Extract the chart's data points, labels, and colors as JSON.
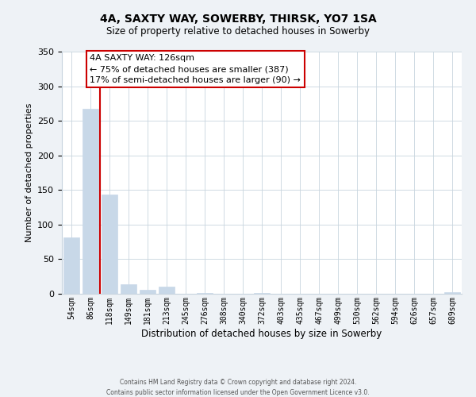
{
  "title": "4A, SAXTY WAY, SOWERBY, THIRSK, YO7 1SA",
  "subtitle": "Size of property relative to detached houses in Sowerby",
  "xlabel": "Distribution of detached houses by size in Sowerby",
  "ylabel": "Number of detached properties",
  "bar_labels": [
    "54sqm",
    "86sqm",
    "118sqm",
    "149sqm",
    "181sqm",
    "213sqm",
    "245sqm",
    "276sqm",
    "308sqm",
    "340sqm",
    "372sqm",
    "403sqm",
    "435sqm",
    "467sqm",
    "499sqm",
    "530sqm",
    "562sqm",
    "594sqm",
    "626sqm",
    "657sqm",
    "689sqm"
  ],
  "bar_values": [
    82,
    267,
    143,
    14,
    6,
    10,
    0,
    1,
    0,
    0,
    1,
    0,
    0,
    0,
    0,
    0,
    0,
    0,
    0,
    0,
    2
  ],
  "bar_color": "#c8d8e8",
  "vline_color": "#cc0000",
  "ylim": [
    0,
    350
  ],
  "yticks": [
    0,
    50,
    100,
    150,
    200,
    250,
    300,
    350
  ],
  "annotation_title": "4A SAXTY WAY: 126sqm",
  "annotation_line1": "← 75% of detached houses are smaller (387)",
  "annotation_line2": "17% of semi-detached houses are larger (90) →",
  "footer_line1": "Contains HM Land Registry data © Crown copyright and database right 2024.",
  "footer_line2": "Contains public sector information licensed under the Open Government Licence v3.0.",
  "background_color": "#eef2f6",
  "plot_bg_color": "#ffffff",
  "grid_color": "#c8d4de"
}
